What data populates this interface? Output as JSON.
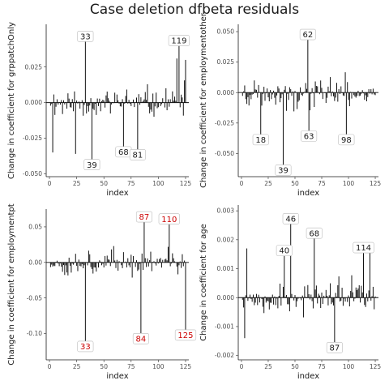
{
  "title": "Case deletion dfbeta residuals",
  "chart_data": [
    {
      "type": "bar",
      "xlabel": "index",
      "ylabel": "Change in coefficient for grppatchOnly",
      "xlim": [
        -3,
        128
      ],
      "ylim": [
        -0.052,
        0.055
      ],
      "xticks": [
        0,
        25,
        50,
        75,
        100,
        125
      ],
      "yticks": [
        -0.05,
        -0.025,
        0.0,
        0.025
      ],
      "ytick_labels": [
        "-0.050",
        "-0.025",
        "0.000",
        "0.025"
      ],
      "n": 125,
      "seed": 11,
      "amplitude": 0.012,
      "highlight_color": "#1a1a1a",
      "spikes": [
        {
          "index": 33,
          "value": 0.046,
          "label": "33"
        },
        {
          "index": 119,
          "value": 0.043,
          "label": "119"
        },
        {
          "index": 39,
          "value": -0.043,
          "label": "39"
        },
        {
          "index": 68,
          "value": -0.034,
          "label": "68"
        },
        {
          "index": 81,
          "value": -0.036,
          "label": "81"
        },
        {
          "index": 24,
          "value": -0.036
        },
        {
          "index": 3,
          "value": -0.035
        },
        {
          "index": 117,
          "value": 0.031
        },
        {
          "index": 125,
          "value": 0.03
        }
      ]
    },
    {
      "type": "bar",
      "xlabel": "index",
      "ylabel": "Change in coefficient for employmentother",
      "xlim": [
        -3,
        128
      ],
      "ylim": [
        -0.069,
        0.056
      ],
      "xticks": [
        0,
        25,
        50,
        75,
        100,
        125
      ],
      "yticks": [
        -0.05,
        -0.025,
        0.0,
        0.025,
        0.05
      ],
      "ytick_labels": [
        "-0.050",
        "-0.025",
        "0.000",
        "0.025",
        "0.050"
      ],
      "n": 125,
      "seed": 23,
      "amplitude": 0.013,
      "highlight_color": "#1a1a1a",
      "spikes": [
        {
          "index": 62,
          "value": 0.047,
          "label": "62"
        },
        {
          "index": 39,
          "value": -0.063,
          "label": "39"
        },
        {
          "index": 18,
          "value": -0.038,
          "label": "18"
        },
        {
          "index": 63,
          "value": -0.035,
          "label": "63"
        },
        {
          "index": 98,
          "value": -0.038,
          "label": "98"
        }
      ]
    },
    {
      "type": "bar",
      "xlabel": "index",
      "ylabel": "Change in coefficient for employmentpt",
      "xlim": [
        -3,
        128
      ],
      "ylim": [
        -0.137,
        0.075
      ],
      "xticks": [
        0,
        25,
        50,
        75,
        100,
        125
      ],
      "yticks": [
        -0.1,
        -0.05,
        0.0,
        0.05
      ],
      "ytick_labels": [
        "-0.10",
        "-0.05",
        "0.00",
        "0.05"
      ],
      "n": 125,
      "seed": 37,
      "amplitude": 0.018,
      "highlight_color": "#cc0000",
      "spikes": [
        {
          "index": 87,
          "value": 0.063,
          "label": "87"
        },
        {
          "index": 110,
          "value": 0.06,
          "label": "110"
        },
        {
          "index": 33,
          "value": -0.117,
          "label": "33"
        },
        {
          "index": 84,
          "value": -0.106,
          "label": "84"
        },
        {
          "index": 125,
          "value": -0.101,
          "label": "125"
        }
      ]
    },
    {
      "type": "bar",
      "xlabel": "index",
      "ylabel": "Change in coefficient for age",
      "xlim": [
        -3,
        128
      ],
      "ylim": [
        -0.00215,
        0.0032
      ],
      "xticks": [
        0,
        25,
        50,
        75,
        100,
        125
      ],
      "yticks": [
        -0.002,
        -0.001,
        0.0,
        0.001,
        0.002,
        0.003
      ],
      "ytick_labels": [
        "-0.002",
        "-0.001",
        "0.000",
        "0.001",
        "0.002",
        "0.003"
      ],
      "n": 125,
      "seed": 53,
      "amplitude": 0.0006,
      "highlight_color": "#1a1a1a",
      "spikes": [
        {
          "index": 46,
          "value": 0.0027,
          "label": "46"
        },
        {
          "index": 68,
          "value": 0.0022,
          "label": "68"
        },
        {
          "index": 40,
          "value": 0.0016,
          "label": "40"
        },
        {
          "index": 114,
          "value": 0.0017,
          "label": "114"
        },
        {
          "index": 87,
          "value": -0.0017,
          "label": "87"
        },
        {
          "index": 5,
          "value": 0.0017
        },
        {
          "index": 3,
          "value": -0.0014
        },
        {
          "index": 120,
          "value": 0.0016
        }
      ]
    }
  ]
}
